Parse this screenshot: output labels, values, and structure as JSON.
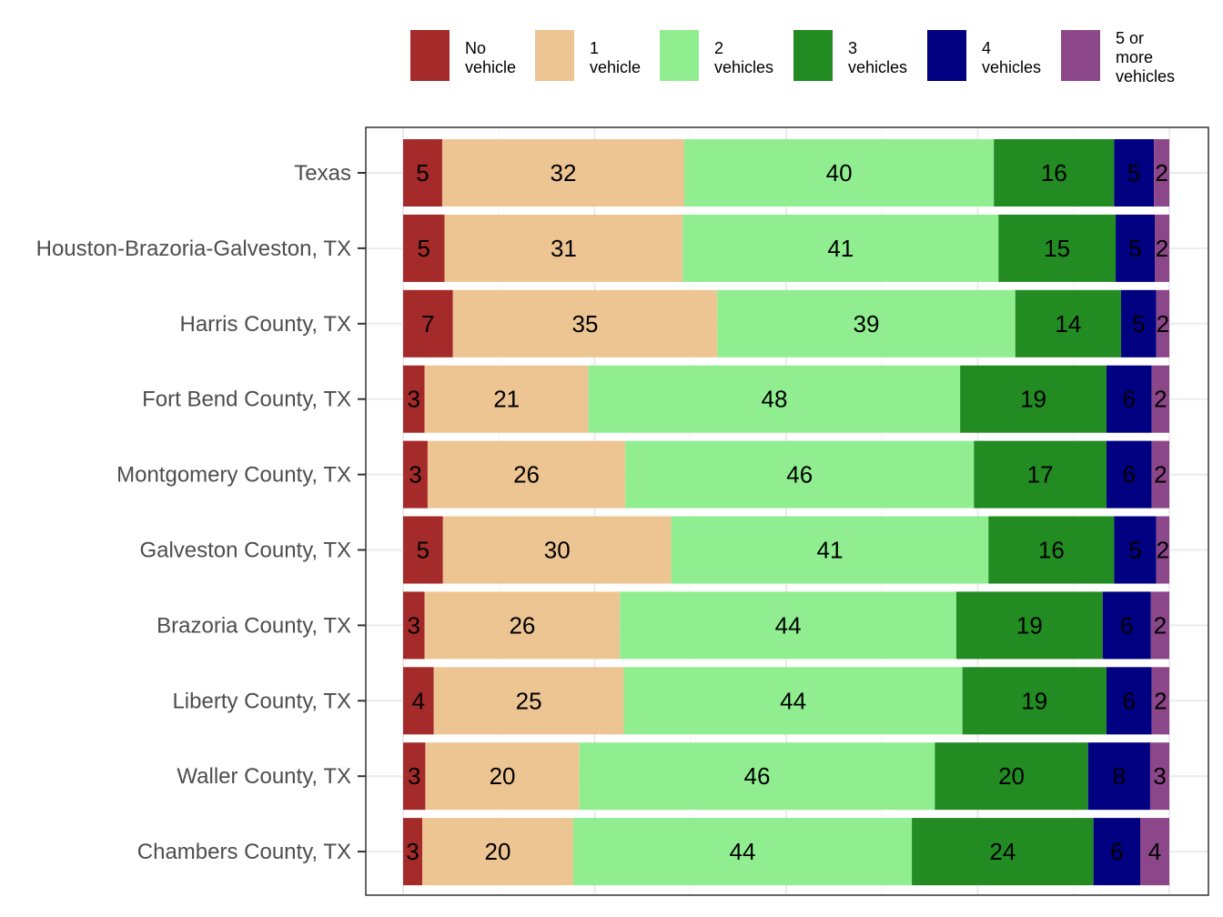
{
  "chart_data": {
    "type": "bar",
    "orientation": "horizontal",
    "stacked": true,
    "grid": true,
    "legend_position": "top",
    "title": "",
    "xlabel": "",
    "ylabel": "",
    "categories": [
      "Texas",
      "Houston-Brazoria-Galveston, TX",
      "Harris County, TX",
      "Fort Bend County, TX",
      "Montgomery County, TX",
      "Galveston County, TX",
      "Brazoria County, TX",
      "Liberty County, TX",
      "Waller County, TX",
      "Chambers County, TX"
    ],
    "series": [
      {
        "name": "No vehicle",
        "legend_lines": [
          "No",
          "vehicle"
        ],
        "color": "#A52A2A",
        "values": [
          5.1,
          5.4,
          6.5,
          2.8,
          3.2,
          5.2,
          2.8,
          4.0,
          2.9,
          2.5
        ],
        "labels": [
          "5",
          "5",
          "7",
          "3",
          "3",
          "5",
          "3",
          "4",
          "3",
          "3"
        ]
      },
      {
        "name": "1 vehicle",
        "legend_lines": [
          "1",
          "vehicle"
        ],
        "color": "#EDC593",
        "values": [
          31.6,
          31.1,
          34.5,
          21.4,
          25.8,
          29.8,
          25.5,
          24.8,
          20.1,
          19.7
        ],
        "labels": [
          "32",
          "31",
          "35",
          "21",
          "26",
          "30",
          "26",
          "25",
          "20",
          "20"
        ]
      },
      {
        "name": "2 vehicles",
        "legend_lines": [
          "2",
          "vehicles"
        ],
        "color": "#90EE90",
        "values": [
          40.4,
          41.2,
          38.9,
          48.5,
          45.5,
          41.4,
          43.9,
          44.2,
          46.4,
          44.2
        ],
        "labels": [
          "40",
          "41",
          "39",
          "48",
          "46",
          "41",
          "44",
          "44",
          "46",
          "44"
        ]
      },
      {
        "name": "3 vehicles",
        "legend_lines": [
          "3",
          "vehicles"
        ],
        "color": "#228B22",
        "values": [
          15.7,
          15.3,
          13.8,
          19.1,
          17.3,
          16.4,
          19.1,
          18.8,
          20.0,
          23.7
        ],
        "labels": [
          "16",
          "15",
          "14",
          "19",
          "17",
          "16",
          "19",
          "19",
          "20",
          "24"
        ]
      },
      {
        "name": "4 vehicles",
        "legend_lines": [
          "4",
          "vehicles"
        ],
        "color": "#000080",
        "values": [
          5.2,
          5.1,
          4.6,
          5.9,
          5.9,
          5.5,
          6.3,
          5.9,
          8.1,
          6.1
        ],
        "labels": [
          "5",
          "5",
          "5",
          "6",
          "6",
          "5",
          "6",
          "6",
          "8",
          "6"
        ]
      },
      {
        "name": "5 or more vehicles",
        "legend_lines": [
          "5 or",
          "more",
          "vehicles"
        ],
        "color": "#8B4789",
        "values": [
          2.0,
          1.9,
          1.7,
          2.3,
          2.3,
          1.7,
          2.4,
          2.3,
          2.5,
          3.8
        ],
        "labels": [
          "2",
          "2",
          "2",
          "2",
          "2",
          "2",
          "2",
          "2",
          "3",
          "4"
        ]
      }
    ],
    "xlim": [
      0,
      100
    ]
  }
}
